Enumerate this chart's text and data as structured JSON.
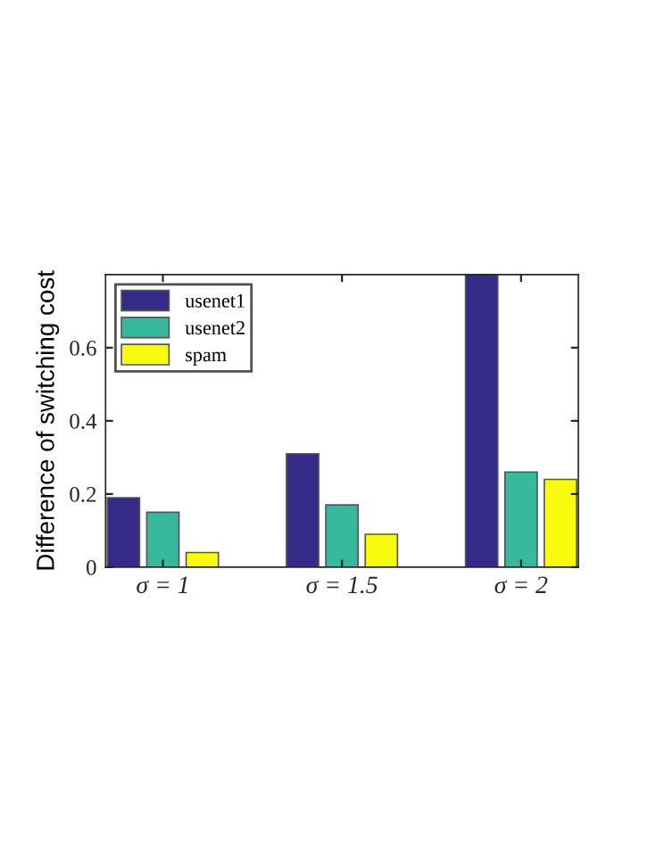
{
  "chart_data": {
    "type": "bar",
    "ylabel": "Difference of switching cost",
    "categories": [
      "σ = 1",
      "σ = 1.5",
      "σ = 2"
    ],
    "series": [
      {
        "name": "usenet1",
        "color": "#352a87",
        "values": [
          0.19,
          0.31,
          0.8
        ]
      },
      {
        "name": "usenet2",
        "color": "#38b99e",
        "values": [
          0.15,
          0.17,
          0.26
        ]
      },
      {
        "name": "spam",
        "color": "#f9fb0e",
        "values": [
          0.04,
          0.09,
          0.24
        ]
      }
    ],
    "ylim": [
      0,
      0.8
    ],
    "yticks": [
      0,
      0.2,
      0.4,
      0.6
    ],
    "grid": false,
    "legend": "top left"
  }
}
